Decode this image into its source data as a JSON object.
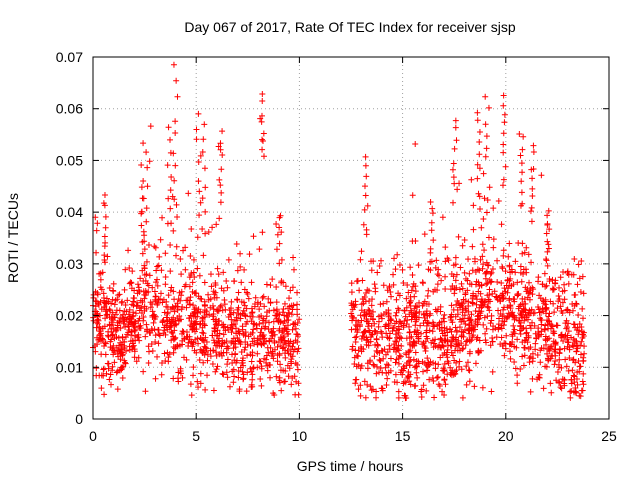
{
  "chart_data": {
    "type": "scatter",
    "title": "Day 067 of 2017, Rate Of TEC Index for receiver sjsp",
    "xlabel": "GPS time / hours",
    "ylabel": "ROTI / TECUs",
    "xlim": [
      0,
      25
    ],
    "ylim": [
      0,
      0.07
    ],
    "xticks": [
      0,
      5,
      10,
      15,
      20,
      25
    ],
    "yticks": [
      0,
      0.01,
      0.02,
      0.03,
      0.04,
      0.05,
      0.06,
      0.07
    ],
    "xtick_labels": [
      "0",
      "5",
      "10",
      "15",
      "20",
      "25"
    ],
    "ytick_labels": [
      "0",
      "0.01",
      "0.02",
      "0.03",
      "0.04",
      "0.05",
      "0.06",
      "0.07"
    ],
    "grid": true,
    "marker": "+",
    "color": "#ff0000",
    "segments": [
      {
        "x_range": [
          0,
          10
        ],
        "baseline": [
          [
            0,
            0.018
          ],
          [
            1,
            0.016
          ],
          [
            2,
            0.019
          ],
          [
            3,
            0.02
          ],
          [
            4,
            0.019
          ],
          [
            5,
            0.018
          ],
          [
            6,
            0.017
          ],
          [
            7,
            0.016
          ],
          [
            8,
            0.016
          ],
          [
            9,
            0.016
          ],
          [
            10,
            0.015
          ]
        ],
        "spread": 0.005,
        "count": 1100
      },
      {
        "x_range": [
          12.5,
          23.8
        ],
        "baseline": [
          [
            12.5,
            0.017
          ],
          [
            14,
            0.016
          ],
          [
            16,
            0.015
          ],
          [
            17,
            0.016
          ],
          [
            18,
            0.019
          ],
          [
            19,
            0.023
          ],
          [
            20,
            0.022
          ],
          [
            21,
            0.02
          ],
          [
            22,
            0.018
          ],
          [
            23,
            0.016
          ],
          [
            23.8,
            0.013
          ]
        ],
        "spread": 0.006,
        "count": 1300
      }
    ],
    "spikes": [
      {
        "x": 0.6,
        "y_range": [
          0.03,
          0.043
        ]
      },
      {
        "x": 2.4,
        "y_range": [
          0.033,
          0.046
        ]
      },
      {
        "x": 2.55,
        "y_range": [
          0.03,
          0.054
        ]
      },
      {
        "x": 3.7,
        "y_range": [
          0.035,
          0.056
        ]
      },
      {
        "x": 3.95,
        "y_range": [
          0.04,
          0.068
        ]
      },
      {
        "x": 5.1,
        "y_range": [
          0.036,
          0.059
        ]
      },
      {
        "x": 5.35,
        "y_range": [
          0.032,
          0.056
        ]
      },
      {
        "x": 6.2,
        "y_range": [
          0.04,
          0.055
        ]
      },
      {
        "x": 8.2,
        "y_range": [
          0.05,
          0.062
        ]
      },
      {
        "x": 9.0,
        "y_range": [
          0.03,
          0.04
        ]
      },
      {
        "x": 13.2,
        "y_range": [
          0.035,
          0.05
        ]
      },
      {
        "x": 16.4,
        "y_range": [
          0.028,
          0.04
        ]
      },
      {
        "x": 17.5,
        "y_range": [
          0.042,
          0.057
        ]
      },
      {
        "x": 18.7,
        "y_range": [
          0.04,
          0.06
        ]
      },
      {
        "x": 19.1,
        "y_range": [
          0.04,
          0.063
        ]
      },
      {
        "x": 19.9,
        "y_range": [
          0.045,
          0.063
        ]
      },
      {
        "x": 20.8,
        "y_range": [
          0.04,
          0.056
        ]
      },
      {
        "x": 21.3,
        "y_range": [
          0.038,
          0.053
        ]
      },
      {
        "x": 22.0,
        "y_range": [
          0.03,
          0.04
        ]
      }
    ],
    "seed": 67
  }
}
